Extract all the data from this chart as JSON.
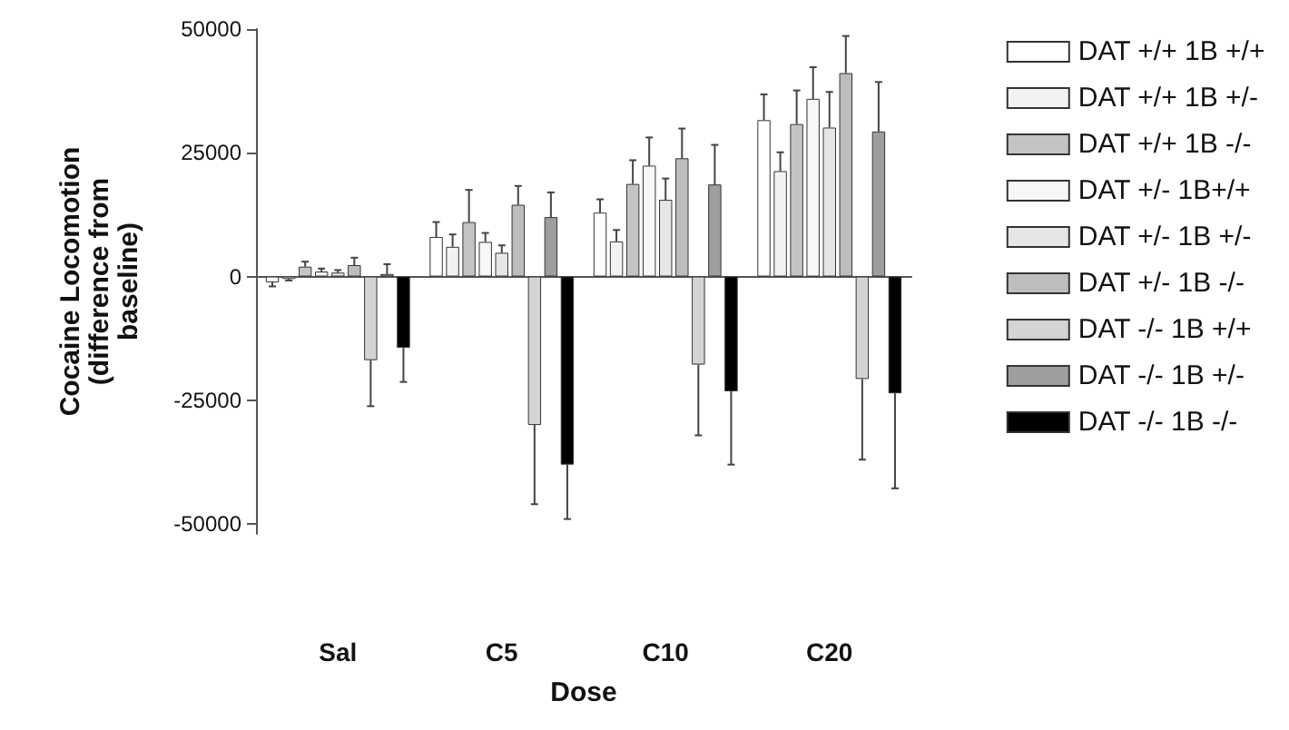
{
  "chart_data": {
    "type": "bar",
    "xlabel": "Dose",
    "ylabel": "Cocaine Locomotion\n(difference from\nbaseline)",
    "categories": [
      "Sal",
      "C5",
      "C10",
      "C20"
    ],
    "ylim": [
      -52000,
      50000
    ],
    "yticks": [
      -50000,
      -25000,
      0,
      25000,
      50000
    ],
    "legend": "right",
    "series": [
      {
        "name": "DAT +/+ 1B +/+",
        "color": "#ffffff",
        "values": [
          -1200,
          8000,
          12900,
          31600
        ],
        "errors": [
          800,
          3000,
          2700,
          5200
        ]
      },
      {
        "name": "DAT +/+ 1B +/-",
        "color": "#f2f2f2",
        "values": [
          -500,
          6000,
          7100,
          21300
        ],
        "errors": [
          300,
          2500,
          2300,
          3800
        ]
      },
      {
        "name": "DAT +/+ 1B -/-",
        "color": "#c4c4c4",
        "values": [
          2000,
          11000,
          18700,
          30800
        ],
        "errors": [
          1000,
          6500,
          4800,
          6800
        ]
      },
      {
        "name": "DAT +/- 1B+/+",
        "color": "#f7f7f7",
        "values": [
          1000,
          7000,
          22400,
          35900
        ],
        "errors": [
          600,
          1800,
          5700,
          6400
        ]
      },
      {
        "name": "DAT +/- 1B +/-",
        "color": "#e6e6e6",
        "values": [
          800,
          4800,
          15500,
          30100
        ],
        "errors": [
          500,
          1500,
          4300,
          7200
        ]
      },
      {
        "name": "DAT +/- 1B -/-",
        "color": "#bdbdbd",
        "values": [
          2300,
          14500,
          23900,
          41100
        ],
        "errors": [
          1500,
          3800,
          6000,
          7500
        ]
      },
      {
        "name": "DAT -/- 1B +/+",
        "color": "#d4d4d4",
        "values": [
          -16900,
          -30000,
          -17800,
          -20700
        ],
        "errors": [
          9300,
          16000,
          14300,
          16300
        ]
      },
      {
        "name": "DAT -/- 1B +/-",
        "color": "#9e9e9e",
        "values": [
          500,
          12000,
          18600,
          29300
        ],
        "errors": [
          2000,
          5000,
          8000,
          10000
        ]
      },
      {
        "name": "DAT -/- 1B -/-",
        "color": "#000000",
        "values": [
          -14400,
          -38000,
          -23200,
          -23600
        ],
        "errors": [
          6900,
          11000,
          14800,
          19200
        ]
      }
    ]
  }
}
